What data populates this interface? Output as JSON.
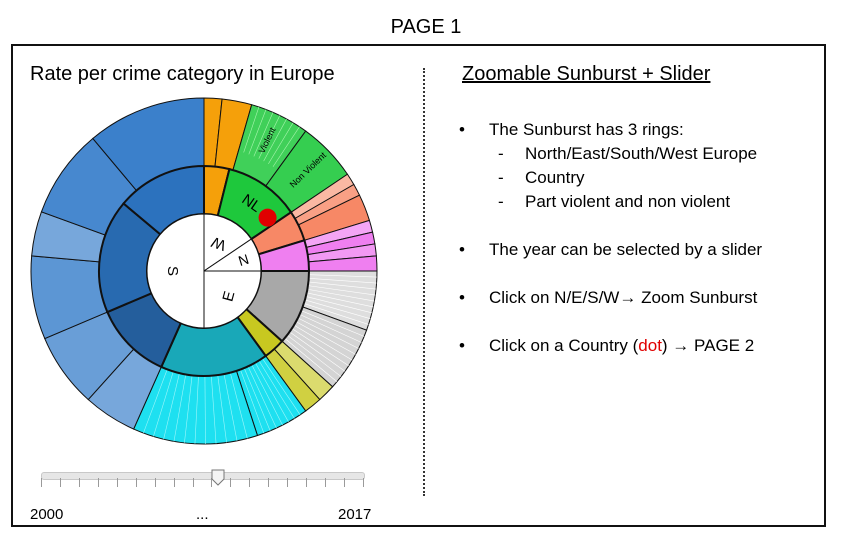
{
  "page_label": "PAGE 1",
  "left_title": "Rate per crime category in Europe",
  "right_title": "Zoomable Sunburst + Slider",
  "sunburst": {
    "region_labels": [
      "S",
      "W",
      "N",
      "E"
    ],
    "country_label": "NL",
    "outer_labels": [
      "Violent",
      "Non Violent"
    ],
    "colors": {
      "south": "#2e78c8",
      "west": "#f5a00a",
      "west_nl": "#1ec83c",
      "north_salmon": "#f78866",
      "north_pink": "#ef7ff0",
      "east_gray": "#a8a8a8",
      "east_olive": "#c8c820",
      "east_teal": "#19a8b8",
      "east_cyan": "#1ee0f0",
      "dot": "#e00000"
    }
  },
  "slider": {
    "start_label": "2000",
    "mid_label": "...",
    "end_label": "2017",
    "value_fraction": 0.55
  },
  "bullets": {
    "b1": "The Sunburst has 3 rings:",
    "b1_sub": [
      "North/East/South/West Europe",
      "Country",
      "Part violent and non violent"
    ],
    "b2": "The year can be selected by a slider",
    "b3": "Click on N/E/S/W→ Zoom Sunburst",
    "b4_pre": "Click on a Country (",
    "b4_red": "dot",
    "b4_post": ") → PAGE 2"
  }
}
